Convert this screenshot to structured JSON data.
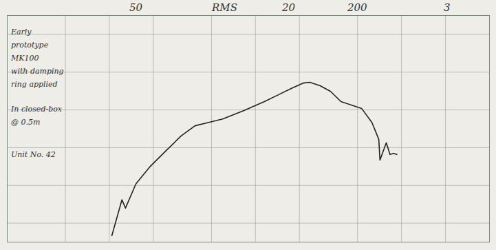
{
  "chart_data": {
    "type": "line",
    "x": [
      104,
      122,
      129,
      152,
      189,
      249,
      310,
      386,
      479,
      597,
      829,
      1152,
      1436,
      1787,
      2120,
      2360,
      2775,
      3270,
      3850,
      4530,
      5330,
      6270,
      6990,
      7120,
      7870,
      8340,
      8820,
      9300
    ],
    "values": [
      -3.3,
      6.2,
      4.0,
      10.4,
      14.9,
      19.5,
      23.1,
      25.8,
      26.7,
      27.6,
      29.8,
      32.2,
      34.0,
      35.8,
      37.1,
      37.3,
      36.4,
      34.9,
      32.2,
      31.3,
      30.4,
      26.7,
      22.2,
      16.7,
      21.3,
      18.2,
      18.5,
      18.2
    ],
    "color": "#222222",
    "log": "x",
    "xlim": [
      20,
      40000
    ],
    "xticks": [
      20,
      50,
      100,
      200,
      500,
      1000,
      2000,
      5000,
      10000,
      20000
    ],
    "ylim": [
      -5,
      55
    ],
    "yticks": [
      0,
      10,
      20,
      30,
      40,
      50
    ],
    "grid": true,
    "tick_labels": false,
    "annotations": {
      "header": [
        "50",
        "RMS",
        "20",
        "200",
        "3"
      ],
      "notes": [
        [
          "Early",
          "prototype",
          "MK100",
          "with damping",
          "ring applied"
        ],
        [
          "In closed-box",
          "@ 0.5m"
        ],
        [
          "Unit No. 42"
        ]
      ]
    }
  }
}
